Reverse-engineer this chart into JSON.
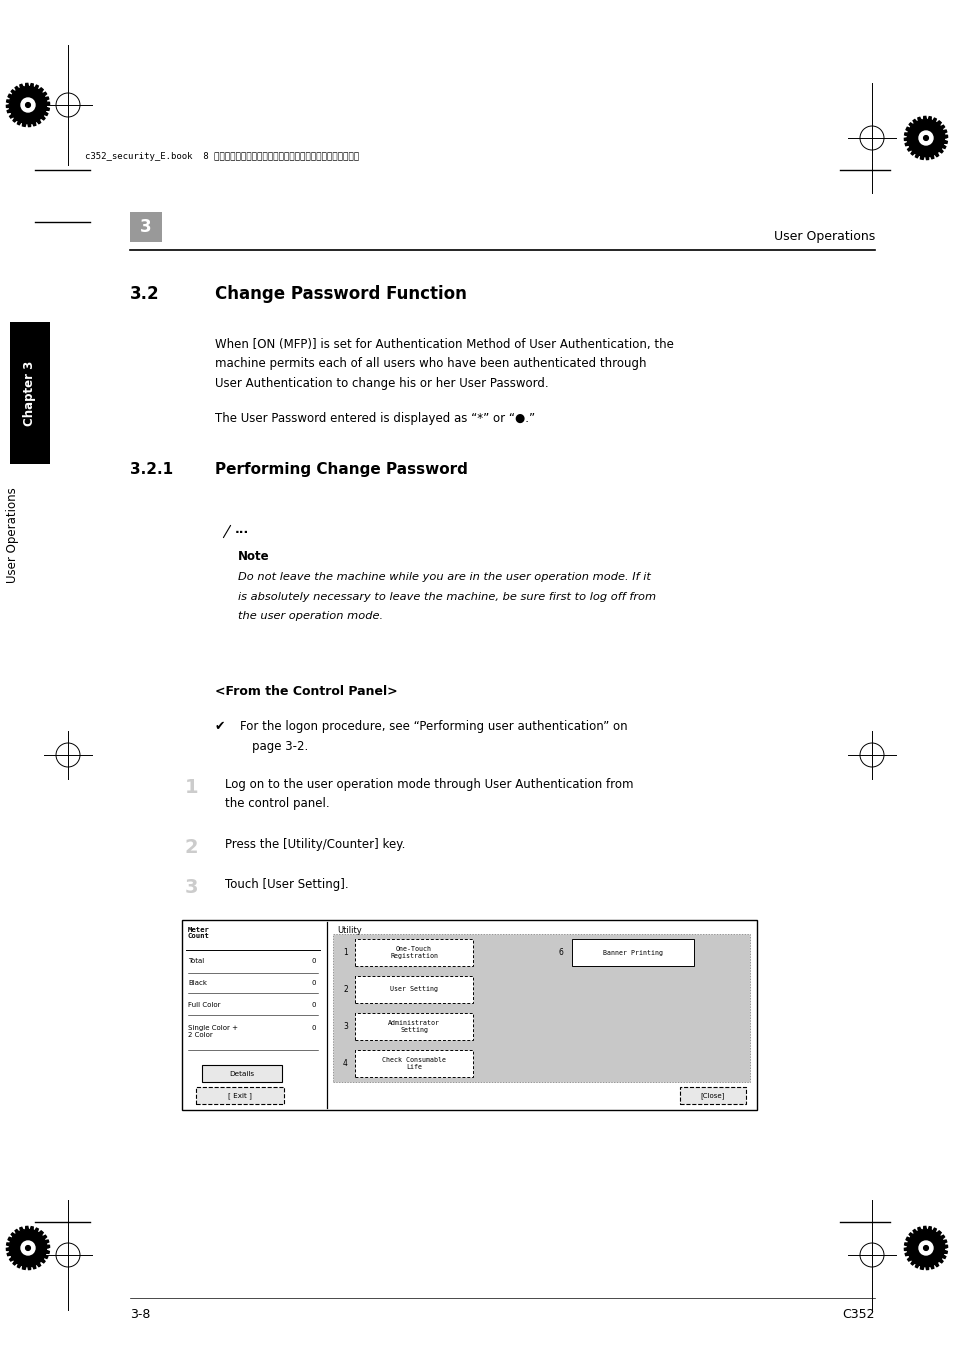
{
  "bg_color": "#ffffff",
  "page_width": 9.54,
  "page_height": 13.5,
  "header_text": "c352_security_E.book  8 ページ　２００７年４月１１日　水曜日　午前１０時５２分",
  "chapter_num": "3",
  "section_header_right": "User Operations",
  "section_title_num": "3.2",
  "section_title_text": "Change Password Function",
  "para1_line1": "When [ON (MFP)] is set for Authentication Method of User Authentication, the",
  "para1_line2": "machine permits each of all users who have been authenticated through",
  "para1_line3": "User Authentication to change his or her User Password.",
  "para2": "The User Password entered is displayed as “*” or “●.”",
  "subsection_num": "3.2.1",
  "subsection_text": "Performing Change Password",
  "note_label": "Note",
  "note_line1": "Do not leave the machine while you are in the user operation mode. If it",
  "note_line2": "is absolutely necessary to leave the machine, be sure first to log off from",
  "note_line3": "the user operation mode.",
  "from_control_panel": "<From the Control Panel>",
  "check_line1": "For the logon procedure, see “Performing user authentication” on",
  "check_line2": "page 3-2.",
  "step1_num": "1",
  "step1_line1": "Log on to the user operation mode through User Authentication from",
  "step1_line2": "the control panel.",
  "step2_num": "2",
  "step2_text": "Press the [Utility/Counter] key.",
  "step3_num": "3",
  "step3_text": "Touch [User Setting].",
  "footer_left": "3-8",
  "footer_right": "C352",
  "sidebar_text": "Chapter 3",
  "sidebar_text2": "User Operations"
}
